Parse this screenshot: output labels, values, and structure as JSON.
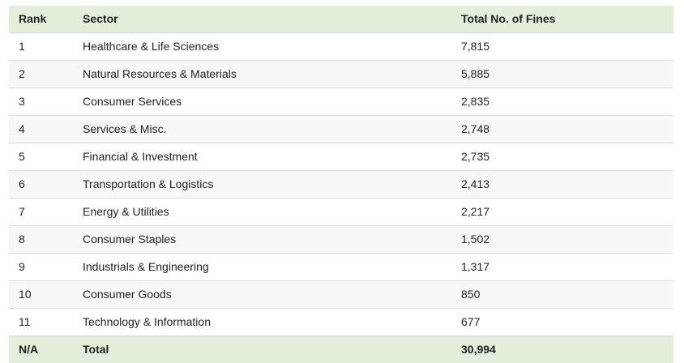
{
  "table": {
    "headers": {
      "rank": "Rank",
      "sector": "Sector",
      "fines": "Total No. of Fines"
    },
    "rows": [
      {
        "rank": "1",
        "sector": "Healthcare & Life Sciences",
        "fines": "7,815"
      },
      {
        "rank": "2",
        "sector": "Natural Resources & Materials",
        "fines": "5,885"
      },
      {
        "rank": "3",
        "sector": "Consumer Services",
        "fines": "2,835"
      },
      {
        "rank": "4",
        "sector": "Services & Misc.",
        "fines": "2,748"
      },
      {
        "rank": "5",
        "sector": "Financial & Investment",
        "fines": "2,735"
      },
      {
        "rank": "6",
        "sector": "Transportation & Logistics",
        "fines": "2,413"
      },
      {
        "rank": "7",
        "sector": "Energy & Utilities",
        "fines": "2,217"
      },
      {
        "rank": "8",
        "sector": "Consumer Staples",
        "fines": "1,502"
      },
      {
        "rank": "9",
        "sector": "Industrials & Engineering",
        "fines": "1,317"
      },
      {
        "rank": "10",
        "sector": "Consumer Goods",
        "fines": "850"
      },
      {
        "rank": "11",
        "sector": "Technology & Information",
        "fines": "677"
      }
    ],
    "total": {
      "rank": "N/A",
      "sector": "Total",
      "fines": "30,994"
    }
  },
  "colors": {
    "header_background": "#e3efdb",
    "alt_row_background": "#f7f7f7",
    "border": "#dcdcdc"
  }
}
